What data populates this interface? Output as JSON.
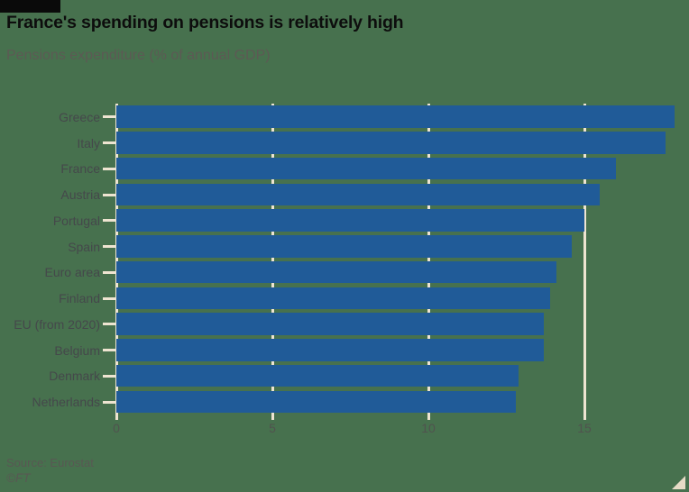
{
  "header": {
    "title": "France's spending on pensions is relatively high",
    "subtitle": "Pensions expenditure (% of annual GDP)"
  },
  "chart_data": {
    "type": "bar",
    "orientation": "horizontal",
    "title": "France's spending on pensions is relatively high",
    "subtitle": "Pensions expenditure (% of annual GDP)",
    "categories": [
      "Greece",
      "Italy",
      "France",
      "Austria",
      "Portugal",
      "Spain",
      "Euro area",
      "Finland",
      "EU (from 2020)",
      "Belgium",
      "Denmark",
      "Netherlands"
    ],
    "values": [
      17.9,
      17.6,
      16.0,
      15.5,
      15.0,
      14.6,
      14.1,
      13.9,
      13.7,
      13.7,
      12.9,
      12.8
    ],
    "xlabel": "",
    "ylabel": "",
    "x_ticks": [
      0,
      5,
      10,
      15
    ],
    "x_tick_labels": [
      "0",
      "5",
      "10",
      "15"
    ],
    "xlim": [
      0,
      18.3
    ],
    "grid": true,
    "legend": false
  },
  "colors": {
    "background": "#47714e",
    "bar": "#205b98",
    "grid": "#eee4d1",
    "title_text": "#0d0d0d",
    "subtitle_text": "#5c5a54",
    "label_text": "#45484b",
    "tick_text": "#50534e",
    "source_text": "#585853",
    "brand_tag": "#0a0a0a",
    "expand_triangle": "#e6dbc6"
  },
  "footer": {
    "source": "Source: Eurostat",
    "credit": "©FT"
  },
  "icons": {
    "expand_triangle": "corner-resize-triangle"
  }
}
